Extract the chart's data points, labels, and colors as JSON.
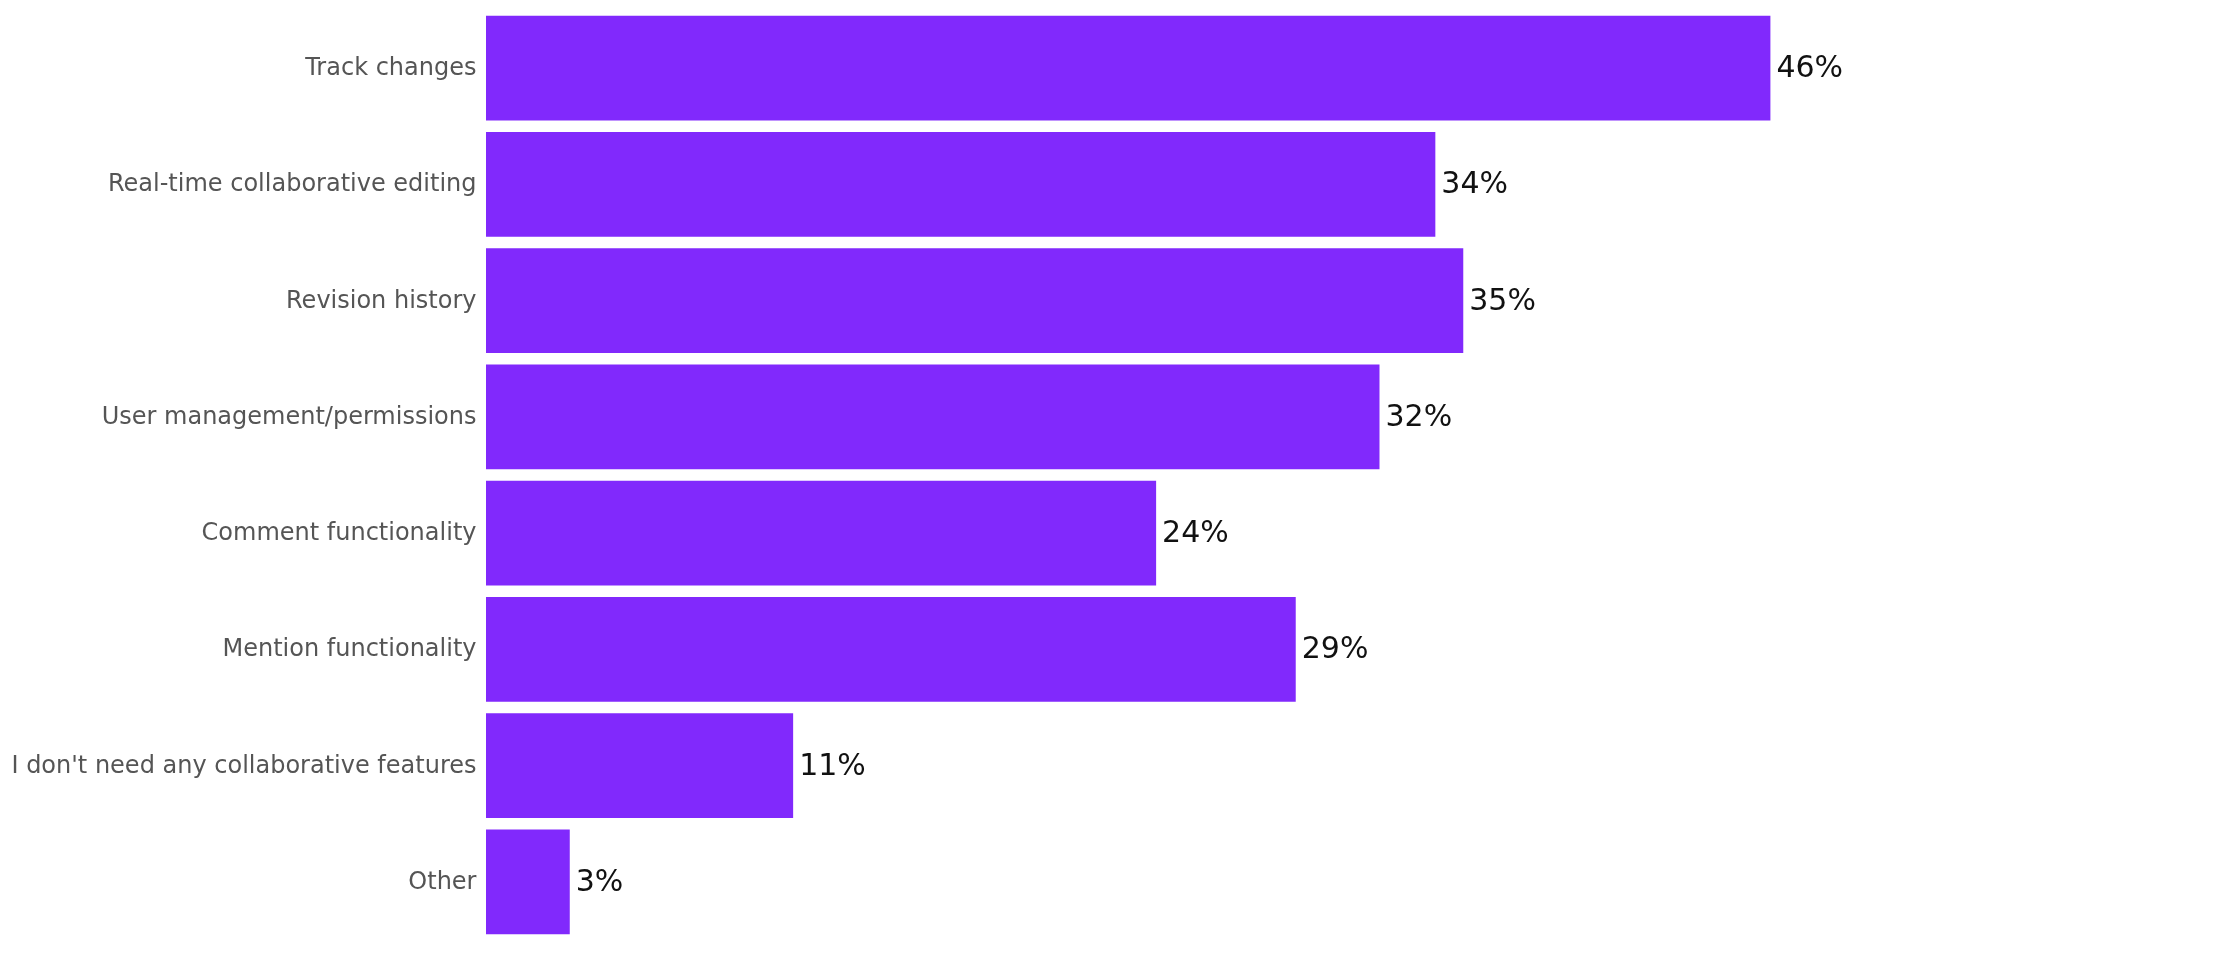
{
  "chart_data": {
    "type": "bar",
    "orientation": "horizontal",
    "categories": [
      "Track changes",
      "Real-time collaborative editing",
      "Revision history",
      "User management/permissions",
      "Comment functionality",
      "Mention functionality",
      "I don't need any collaborative features",
      "Other"
    ],
    "values": [
      46,
      34,
      35,
      32,
      24,
      29,
      11,
      3
    ],
    "value_labels": [
      "46%",
      "34%",
      "35%",
      "32%",
      "24%",
      "29%",
      "11%",
      "3%"
    ],
    "color": "#8129fc"
  }
}
